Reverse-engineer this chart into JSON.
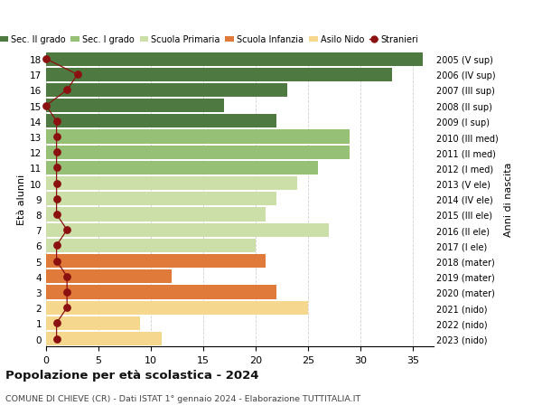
{
  "ages": [
    0,
    1,
    2,
    3,
    4,
    5,
    6,
    7,
    8,
    9,
    10,
    11,
    12,
    13,
    14,
    15,
    16,
    17,
    18
  ],
  "right_labels": [
    "2023 (nido)",
    "2022 (nido)",
    "2021 (nido)",
    "2020 (mater)",
    "2019 (mater)",
    "2018 (mater)",
    "2017 (I ele)",
    "2016 (II ele)",
    "2015 (III ele)",
    "2014 (IV ele)",
    "2013 (V ele)",
    "2012 (I med)",
    "2011 (II med)",
    "2010 (III med)",
    "2009 (I sup)",
    "2008 (II sup)",
    "2007 (III sup)",
    "2006 (IV sup)",
    "2005 (V sup)"
  ],
  "bar_values": [
    11,
    9,
    25,
    22,
    12,
    21,
    20,
    27,
    21,
    22,
    24,
    26,
    29,
    29,
    22,
    17,
    23,
    33,
    36
  ],
  "bar_colors": [
    "#f5d88e",
    "#f5d88e",
    "#f5d88e",
    "#e07a3a",
    "#e07a3a",
    "#e07a3a",
    "#cddfa8",
    "#cddfa8",
    "#cddfa8",
    "#cddfa8",
    "#cddfa8",
    "#95c076",
    "#95c076",
    "#95c076",
    "#4e7a42",
    "#4e7a42",
    "#4e7a42",
    "#4e7a42",
    "#4e7a42"
  ],
  "stranieri_values": [
    1,
    1,
    2,
    2,
    2,
    1,
    1,
    2,
    1,
    1,
    1,
    1,
    1,
    1,
    1,
    0,
    2,
    3,
    0
  ],
  "legend_labels": [
    "Sec. II grado",
    "Sec. I grado",
    "Scuola Primaria",
    "Scuola Infanzia",
    "Asilo Nido",
    "Stranieri"
  ],
  "legend_colors": [
    "#4e7a42",
    "#95c076",
    "#cddfa8",
    "#e07a3a",
    "#f5d88e",
    "#8b1010"
  ],
  "title": "Popolazione per età scolastica - 2024",
  "subtitle": "COMUNE DI CHIEVE (CR) - Dati ISTAT 1° gennaio 2024 - Elaborazione TUTTITALIA.IT",
  "ylabel_left": "Età alunni",
  "ylabel_right": "Anni di nascita",
  "xlim": [
    0,
    37
  ],
  "xticks": [
    0,
    5,
    10,
    15,
    20,
    25,
    30,
    35
  ],
  "background_color": "#ffffff",
  "grid_color": "#d0d0d0",
  "bar_height": 0.88
}
